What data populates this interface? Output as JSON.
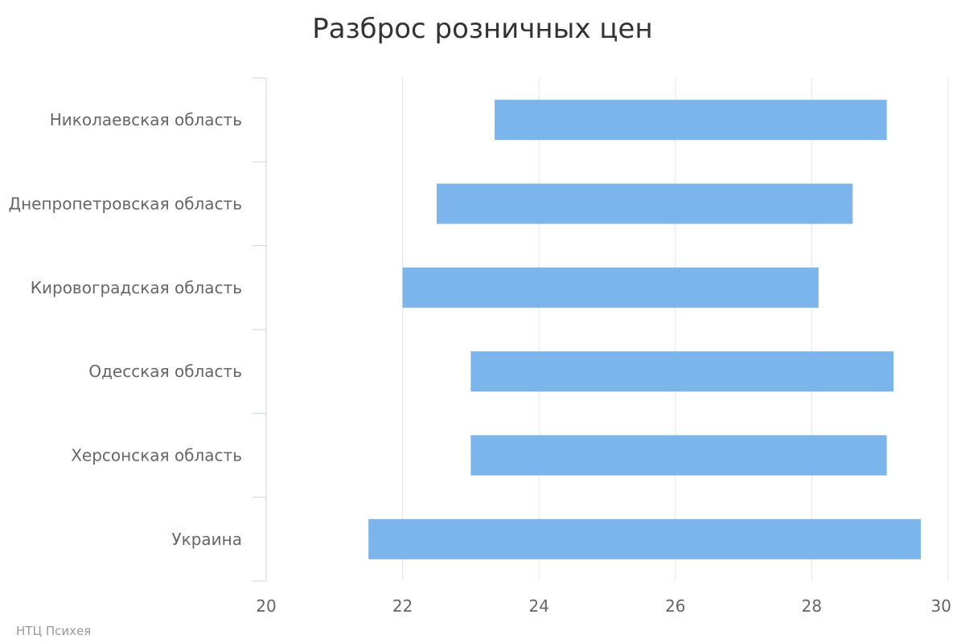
{
  "chart_data": {
    "type": "bar",
    "orientation": "horizontal",
    "range_bars": true,
    "title": "Разброс розничных цен",
    "xlabel": "",
    "ylabel": "",
    "categories": [
      "Николаевская область",
      "Днепропетровская область",
      "Кировоградская область",
      "Одесская область",
      "Херсонская область",
      "Украина"
    ],
    "series": [
      {
        "low": [
          23.35,
          22.5,
          22.0,
          23.0,
          23.0,
          21.5
        ],
        "high": [
          29.1,
          28.6,
          28.1,
          29.2,
          29.1,
          29.6
        ]
      }
    ],
    "xlim": [
      20,
      30
    ],
    "xticks": [
      20,
      22,
      24,
      26,
      28,
      30
    ],
    "grid": true,
    "legend": "none",
    "colors": {
      "bar": "#7cb5ec",
      "grid": "#e6e6e6",
      "axis": "#ccd6eb"
    }
  },
  "credits": "НТЦ Психея"
}
